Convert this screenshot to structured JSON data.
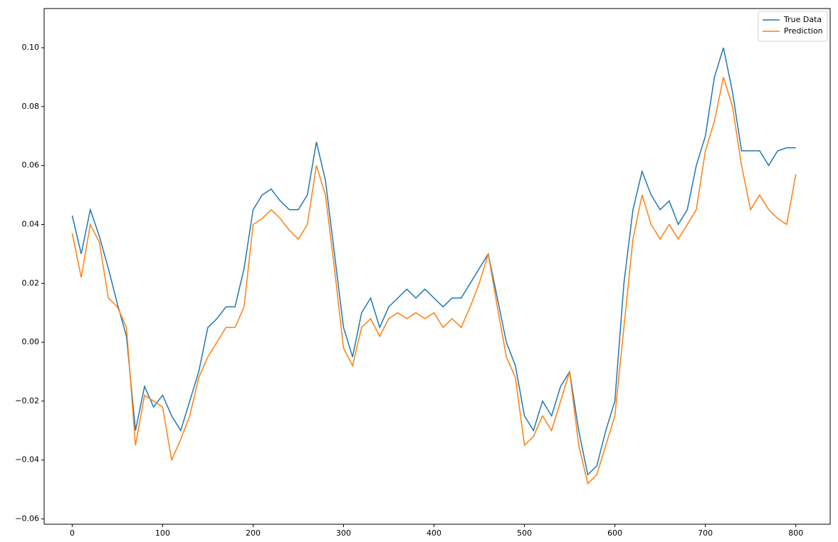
{
  "chart_data": {
    "type": "line",
    "x": [
      0,
      10,
      20,
      30,
      40,
      50,
      60,
      70,
      80,
      90,
      100,
      110,
      120,
      130,
      140,
      150,
      160,
      170,
      180,
      190,
      200,
      210,
      220,
      230,
      240,
      250,
      260,
      270,
      280,
      290,
      300,
      310,
      320,
      330,
      340,
      350,
      360,
      370,
      380,
      390,
      400,
      410,
      420,
      430,
      440,
      450,
      460,
      470,
      480,
      490,
      500,
      510,
      520,
      530,
      540,
      550,
      560,
      570,
      580,
      590,
      600,
      610,
      620,
      630,
      640,
      650,
      660,
      670,
      680,
      690,
      700,
      710,
      720,
      730,
      740,
      750,
      760,
      770,
      780,
      790,
      800
    ],
    "series": [
      {
        "name": "True Data",
        "color": "#1f77b4",
        "values": [
          0.043,
          0.03,
          0.045,
          0.036,
          0.025,
          0.013,
          0.002,
          -0.03,
          -0.015,
          -0.022,
          -0.018,
          -0.025,
          -0.03,
          -0.02,
          -0.01,
          0.005,
          0.008,
          0.012,
          0.012,
          0.025,
          0.045,
          0.05,
          0.052,
          0.048,
          0.045,
          0.045,
          0.05,
          0.068,
          0.055,
          0.03,
          0.005,
          -0.005,
          0.01,
          0.015,
          0.005,
          0.012,
          0.015,
          0.018,
          0.015,
          0.018,
          0.015,
          0.012,
          0.015,
          0.015,
          0.02,
          0.025,
          0.03,
          0.015,
          0.0,
          -0.008,
          -0.025,
          -0.03,
          -0.02,
          -0.025,
          -0.015,
          -0.01,
          -0.03,
          -0.045,
          -0.042,
          -0.03,
          -0.02,
          0.02,
          0.045,
          0.058,
          0.05,
          0.045,
          0.048,
          0.04,
          0.045,
          0.06,
          0.07,
          0.09,
          0.1,
          0.085,
          0.065,
          0.065,
          0.065,
          0.06,
          0.065,
          0.066,
          0.066
        ]
      },
      {
        "name": "Prediction",
        "color": "#ff7f0e",
        "values": [
          0.037,
          0.022,
          0.04,
          0.034,
          0.015,
          0.012,
          0.005,
          -0.035,
          -0.018,
          -0.02,
          -0.022,
          -0.04,
          -0.033,
          -0.025,
          -0.012,
          -0.005,
          0.0,
          0.005,
          0.005,
          0.012,
          0.04,
          0.042,
          0.045,
          0.042,
          0.038,
          0.035,
          0.04,
          0.06,
          0.05,
          0.025,
          -0.002,
          -0.008,
          0.005,
          0.008,
          0.002,
          0.008,
          0.01,
          0.008,
          0.01,
          0.008,
          0.01,
          0.005,
          0.008,
          0.005,
          0.012,
          0.02,
          0.03,
          0.012,
          -0.005,
          -0.012,
          -0.035,
          -0.032,
          -0.025,
          -0.03,
          -0.02,
          -0.01,
          -0.035,
          -0.048,
          -0.045,
          -0.035,
          -0.025,
          0.005,
          0.035,
          0.05,
          0.04,
          0.035,
          0.04,
          0.035,
          0.04,
          0.045,
          0.065,
          0.075,
          0.09,
          0.08,
          0.06,
          0.045,
          0.05,
          0.045,
          0.042,
          0.04,
          0.057
        ]
      }
    ],
    "xlim": [
      -31,
      838
    ],
    "xticks": [
      0,
      100,
      200,
      300,
      400,
      500,
      600,
      700,
      800
    ],
    "ylim": [
      -0.0618,
      0.1133
    ],
    "yticks": [
      {
        "value": -0.06,
        "label": "−0.06"
      },
      {
        "value": -0.04,
        "label": "−0.04"
      },
      {
        "value": -0.02,
        "label": "−0.02"
      },
      {
        "value": 0,
        "label": "0.00"
      },
      {
        "value": 0.02,
        "label": "0.02"
      },
      {
        "value": 0.04,
        "label": "0.04"
      },
      {
        "value": 0.06,
        "label": "0.06"
      },
      {
        "value": 0.08,
        "label": "0.08"
      },
      {
        "value": 0.1,
        "label": "0.10"
      }
    ],
    "legend": "upper right"
  }
}
